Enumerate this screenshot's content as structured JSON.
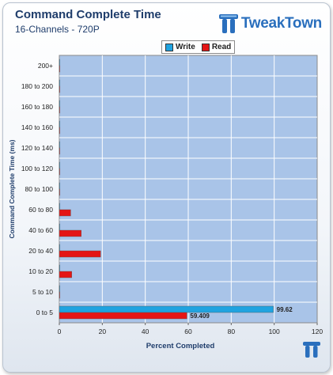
{
  "title": "Command  Complete Time",
  "subtitle": "16-Channels - 720P",
  "logo": {
    "text": "TweakTown",
    "icon": "tweaktown-tt-icon"
  },
  "colors": {
    "write": "#1fa3e0",
    "read": "#e41515",
    "plot_bg": "#a9c4e8",
    "grid": "#ffffff"
  },
  "chart_data": {
    "type": "bar",
    "orientation": "horizontal",
    "title": "Command  Complete Time",
    "subtitle": "16-Channels - 720P",
    "xlabel": "Percent Completed",
    "ylabel": "Command Complete Time (ms)",
    "xlim": [
      0,
      120
    ],
    "xticks": [
      0,
      20,
      40,
      60,
      80,
      100,
      120
    ],
    "grid": true,
    "legend_position": "top",
    "categories": [
      "0 to 5",
      "5 to 10",
      "10 to 20",
      "20 to 40",
      "40 to 60",
      "60 to 80",
      "80 to 100",
      "100 to 120",
      "120 to 140",
      "140 to 160",
      "160 to 180",
      "180 to 200",
      "200+"
    ],
    "series": [
      {
        "name": "Write",
        "values": [
          99.62,
          0,
          0,
          0,
          0,
          0,
          0,
          0,
          0,
          0,
          0,
          0,
          0
        ],
        "labels": [
          "99.62",
          "",
          "",
          "",
          "",
          "",
          "",
          "",
          "",
          "",
          "",
          "",
          ""
        ]
      },
      {
        "name": "Read",
        "values": [
          59.409,
          0,
          5.8,
          19.2,
          10.2,
          5.3,
          0,
          0,
          0,
          0,
          0,
          0,
          0
        ],
        "labels": [
          "59.409",
          "",
          "",
          "",
          "",
          "",
          "",
          "",
          "",
          "",
          "",
          "",
          ""
        ]
      }
    ]
  }
}
